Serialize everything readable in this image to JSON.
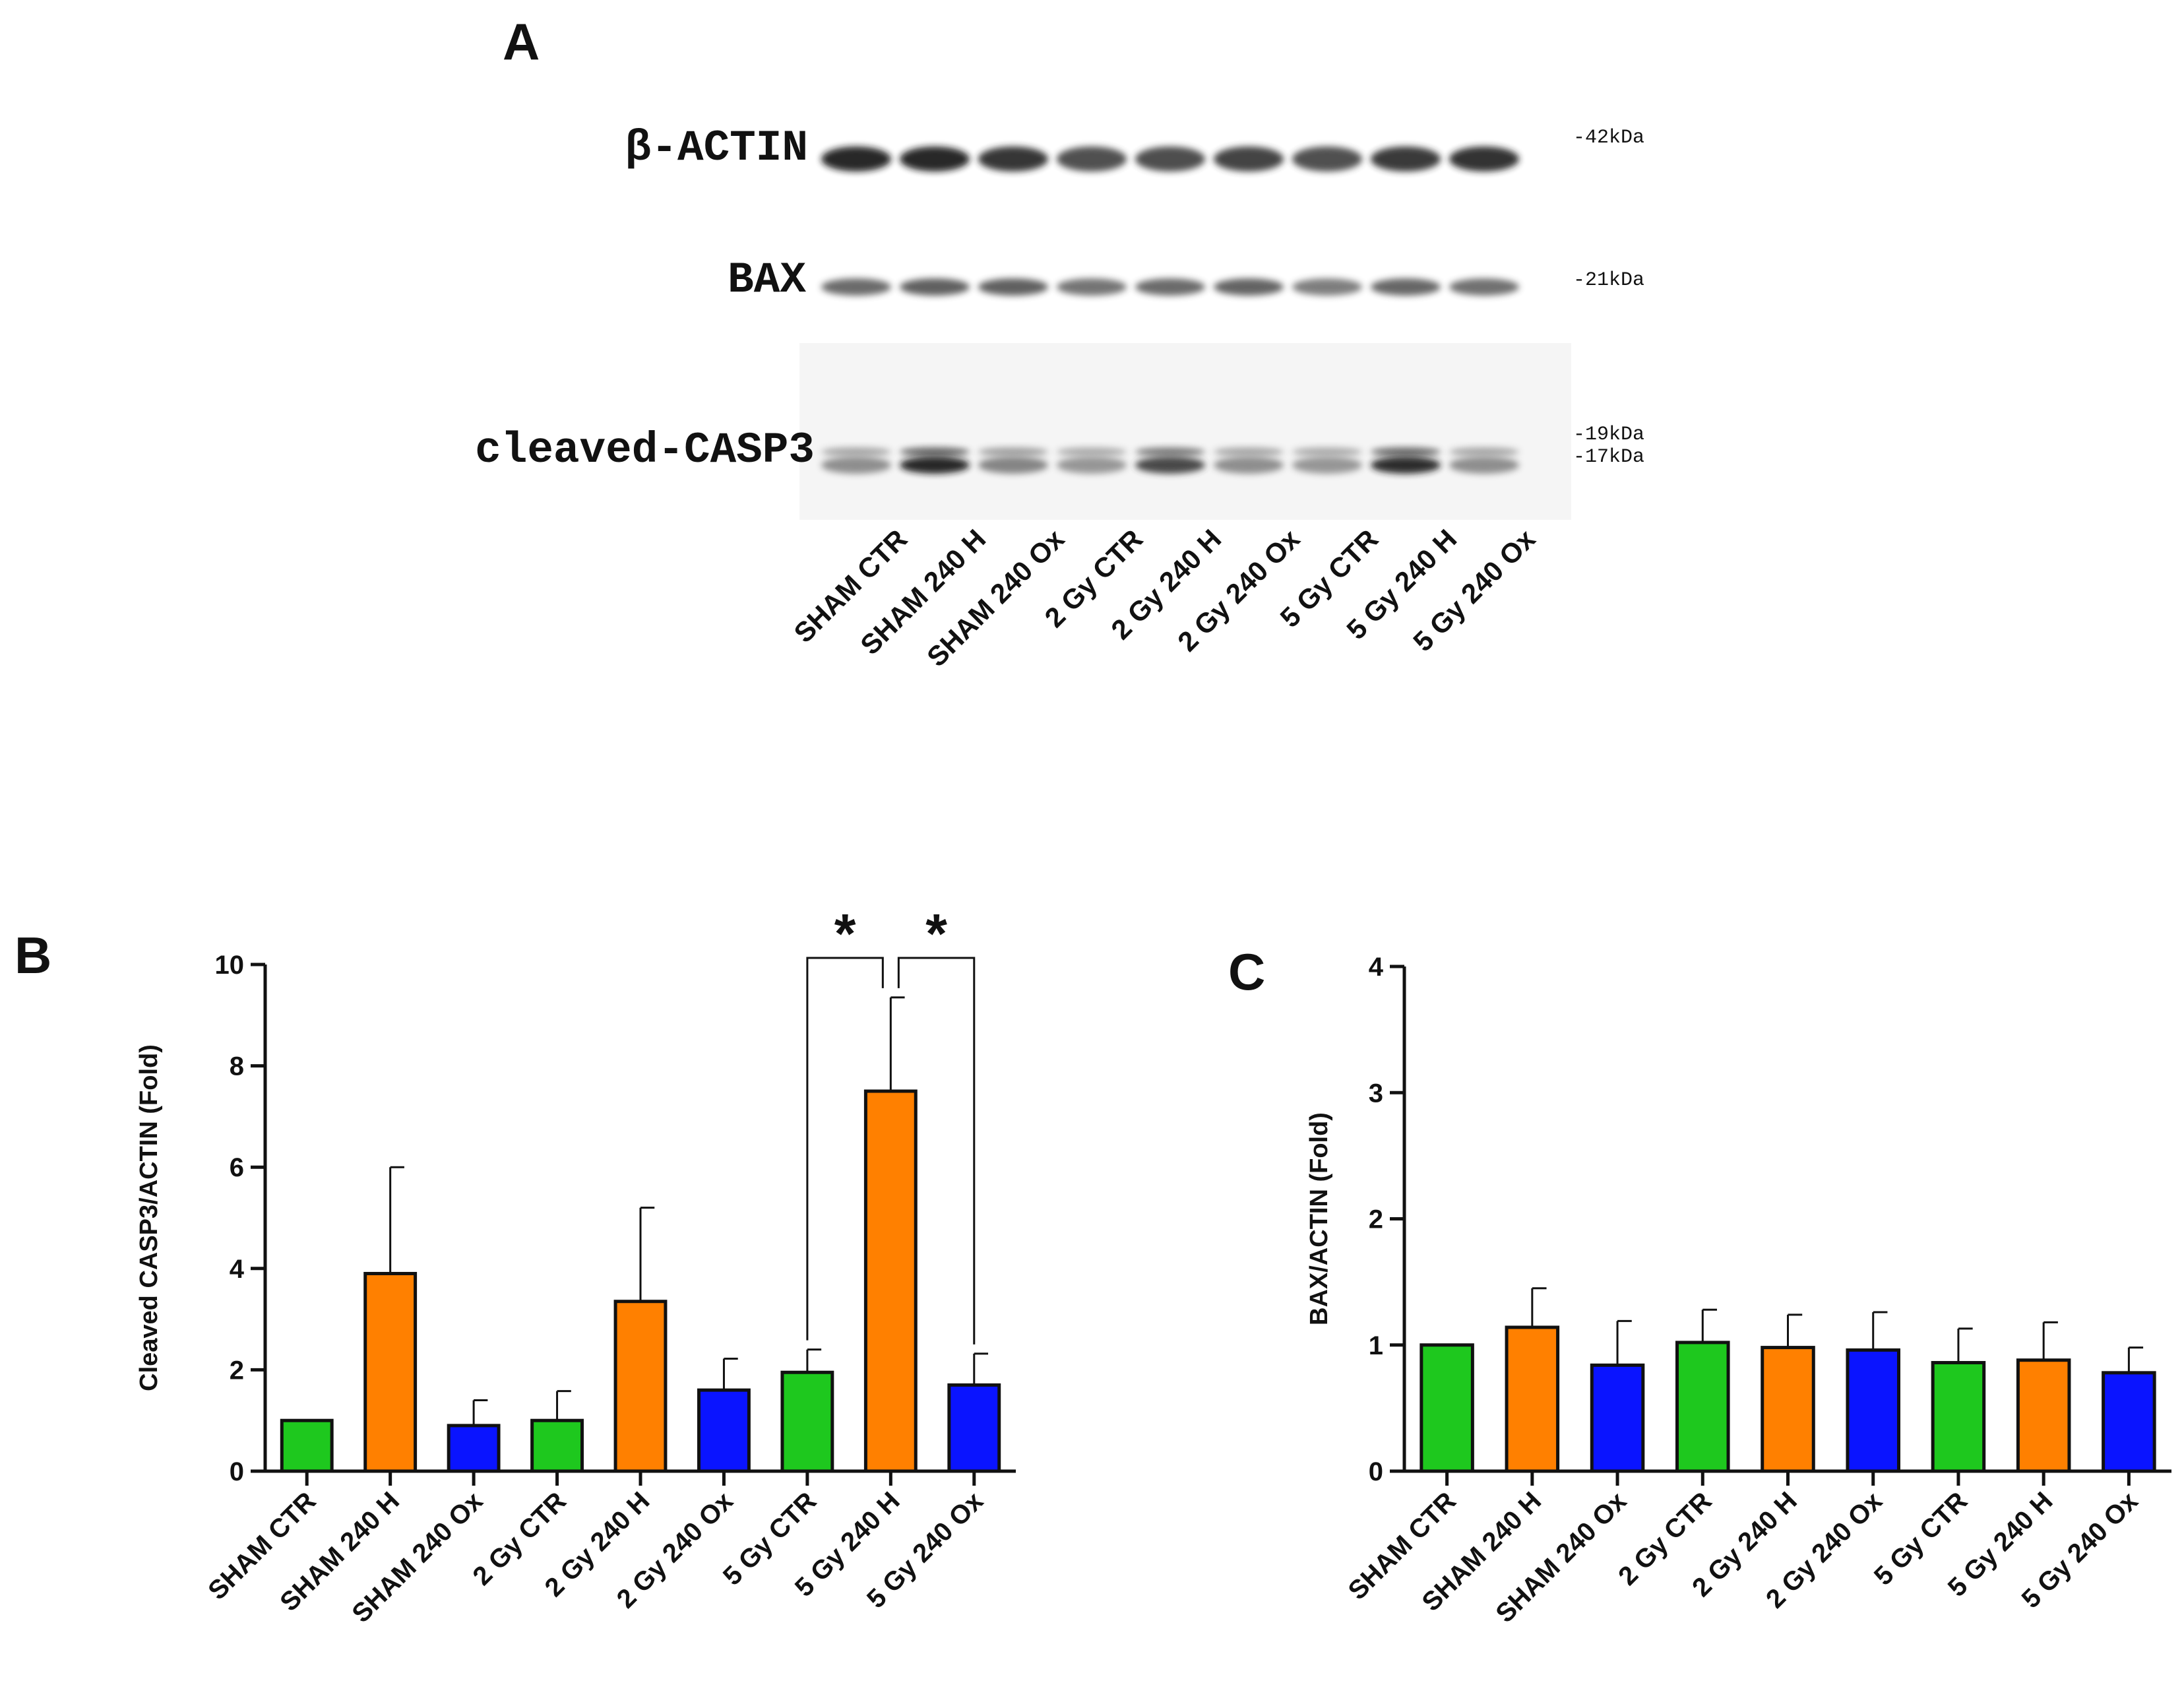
{
  "panels": {
    "a": "A",
    "b": "B",
    "c": "C"
  },
  "blot": {
    "rows": [
      {
        "label": "β-ACTIN",
        "markers": [
          "-42kDa"
        ],
        "intensities": [
          0.95,
          0.95,
          0.85,
          0.7,
          0.72,
          0.78,
          0.7,
          0.82,
          0.88
        ]
      },
      {
        "label": "BAX",
        "markers": [
          "-21kDa"
        ],
        "intensities": [
          0.55,
          0.62,
          0.62,
          0.5,
          0.55,
          0.6,
          0.45,
          0.58,
          0.52
        ]
      },
      {
        "label": "cleaved-CASP3",
        "markers": [
          "-19kDa",
          "-17kDa"
        ],
        "intensities": [
          0.35,
          0.95,
          0.4,
          0.3,
          0.75,
          0.35,
          0.3,
          0.9,
          0.35
        ]
      }
    ],
    "lanes": [
      "SHAM CTR",
      "SHAM 240 H",
      "SHAM 240 Ox",
      "2 Gy CTR",
      "2 Gy 240 H",
      "2 Gy 240 Ox",
      "5 Gy CTR",
      "5 Gy 240 H",
      "5 Gy 240 Ox"
    ]
  },
  "colors": {
    "green": "#1ec81e",
    "orange": "#ff8000",
    "blue": "#0a14ff",
    "axis": "#111111"
  },
  "chart_data": [
    {
      "panel": "B",
      "type": "bar",
      "ylabel": "Cleaved CASP3/ACTIN (Fold)",
      "ylim": [
        0,
        10
      ],
      "yticks": [
        0,
        2,
        4,
        6,
        8,
        10
      ],
      "categories": [
        "SHAM CTR",
        "SHAM 240 H",
        "SHAM 240 Ox",
        "2 Gy CTR",
        "2 Gy 240 H",
        "2 Gy 240 Ox",
        "5 Gy CTR",
        "5 Gy 240 H",
        "5 Gy 240 Ox"
      ],
      "values": [
        1.0,
        3.9,
        0.9,
        1.0,
        3.35,
        1.6,
        1.95,
        7.5,
        1.7
      ],
      "errors": [
        0,
        2.1,
        0.5,
        0.58,
        1.85,
        0.62,
        0.45,
        1.85,
        0.62
      ],
      "bar_colors": [
        "green",
        "orange",
        "blue",
        "green",
        "orange",
        "blue",
        "green",
        "orange",
        "blue"
      ],
      "significance": [
        {
          "from": 6,
          "to": 7,
          "label": "*"
        },
        {
          "from": 7,
          "to": 8,
          "label": "*"
        }
      ]
    },
    {
      "panel": "C",
      "type": "bar",
      "ylabel": "BAX/ACTIN (Fold)",
      "ylim": [
        0,
        4
      ],
      "yticks": [
        0,
        1,
        2,
        3,
        4
      ],
      "categories": [
        "SHAM CTR",
        "SHAM 240 H",
        "SHAM 240 Ox",
        "2 Gy CTR",
        "2 Gy 240 H",
        "2 Gy 240 Ox",
        "5 Gy CTR",
        "5 Gy 240 H",
        "5 Gy 240 Ox"
      ],
      "values": [
        1.0,
        1.14,
        0.84,
        1.02,
        0.98,
        0.96,
        0.86,
        0.88,
        0.78
      ],
      "errors": [
        0,
        0.31,
        0.35,
        0.26,
        0.26,
        0.3,
        0.27,
        0.3,
        0.2
      ],
      "bar_colors": [
        "green",
        "orange",
        "blue",
        "green",
        "orange",
        "blue",
        "green",
        "orange",
        "blue"
      ]
    }
  ]
}
